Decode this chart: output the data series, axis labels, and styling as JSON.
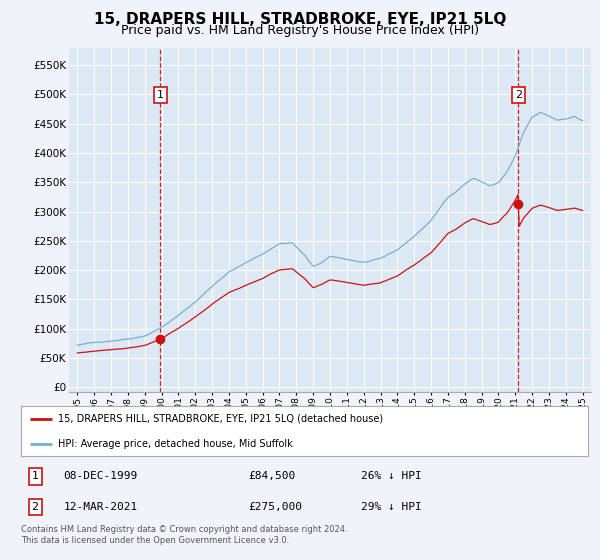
{
  "title": "15, DRAPERS HILL, STRADBROKE, EYE, IP21 5LQ",
  "subtitle": "Price paid vs. HM Land Registry's House Price Index (HPI)",
  "title_fontsize": 11,
  "subtitle_fontsize": 9,
  "background_color": "#f0f4fa",
  "plot_bg_color": "#dde8f5",
  "legend_entries": [
    "15, DRAPERS HILL, STRADBROKE, EYE, IP21 5LQ (detached house)",
    "HPI: Average price, detached house, Mid Suffolk"
  ],
  "legend_colors": [
    "#cc0000",
    "#6699cc"
  ],
  "annotation_table": [
    {
      "num": "1",
      "date": "08-DEC-1999",
      "price": "£84,500",
      "hpi": "26% ↓ HPI"
    },
    {
      "num": "2",
      "date": "12-MAR-2021",
      "price": "£275,000",
      "hpi": "29% ↓ HPI"
    }
  ],
  "sale1_year": 1999.92,
  "sale1_price": 84500,
  "sale2_year": 2021.18,
  "sale2_price": 275000,
  "yticks": [
    0,
    50000,
    100000,
    150000,
    200000,
    250000,
    300000,
    350000,
    400000,
    450000,
    500000,
    550000
  ],
  "ylim": [
    -8000,
    580000
  ],
  "xlim_left": 1994.5,
  "xlim_right": 2025.5,
  "footnote": "Contains HM Land Registry data © Crown copyright and database right 2024.\nThis data is licensed under the Open Government Licence v3.0.",
  "vline_color": "#cc0000",
  "hpi_anchors_t": [
    1995.0,
    1996.0,
    1997.0,
    1998.0,
    1999.0,
    2000.0,
    2001.0,
    2002.0,
    2003.0,
    2004.0,
    2005.0,
    2006.0,
    2007.0,
    2007.75,
    2008.5,
    2009.0,
    2009.5,
    2010.0,
    2011.0,
    2012.0,
    2013.0,
    2014.0,
    2015.0,
    2016.0,
    2017.0,
    2017.5,
    2018.0,
    2018.5,
    2019.0,
    2019.5,
    2020.0,
    2020.5,
    2021.0,
    2021.5,
    2022.0,
    2022.5,
    2023.0,
    2023.5,
    2024.0,
    2024.5,
    2025.0
  ],
  "hpi_anchors_v": [
    72000,
    76000,
    80000,
    84000,
    90000,
    105000,
    125000,
    148000,
    175000,
    200000,
    215000,
    230000,
    248000,
    250000,
    228000,
    208000,
    215000,
    225000,
    220000,
    215000,
    220000,
    235000,
    258000,
    285000,
    325000,
    335000,
    348000,
    358000,
    352000,
    345000,
    350000,
    368000,
    395000,
    435000,
    460000,
    468000,
    462000,
    455000,
    458000,
    462000,
    455000
  ]
}
